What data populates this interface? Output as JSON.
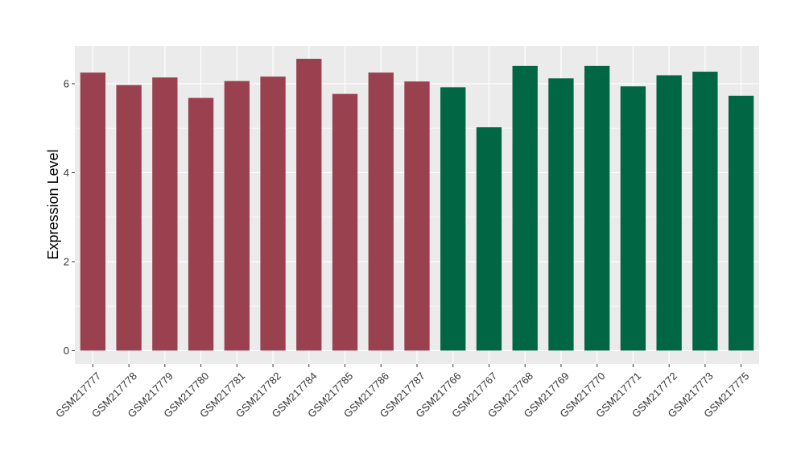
{
  "chart_data": {
    "type": "bar",
    "ylabel": "Expression Level",
    "xlabel": "",
    "ylim": [
      -0.3,
      6.85
    ],
    "y_ticks": [
      0,
      2,
      4,
      6
    ],
    "y_minor_ticks": [
      1,
      3,
      5
    ],
    "grid": true,
    "legend": "none",
    "categories": [
      "GSM217777",
      "GSM217778",
      "GSM217779",
      "GSM217780",
      "GSM217781",
      "GSM217782",
      "GSM217784",
      "GSM217785",
      "GSM217786",
      "GSM217787",
      "GSM217766",
      "GSM217767",
      "GSM217768",
      "GSM217769",
      "GSM217770",
      "GSM217771",
      "GSM217772",
      "GSM217773",
      "GSM217775"
    ],
    "values": [
      6.25,
      5.97,
      6.14,
      5.68,
      6.06,
      6.16,
      6.56,
      5.77,
      6.25,
      6.05,
      5.92,
      5.02,
      6.4,
      6.12,
      6.4,
      5.94,
      6.19,
      6.27,
      5.73
    ],
    "bar_colors": [
      "#99414F",
      "#99414F",
      "#99414F",
      "#99414F",
      "#99414F",
      "#99414F",
      "#99414F",
      "#99414F",
      "#99414F",
      "#99414F",
      "#006644",
      "#006644",
      "#006644",
      "#006644",
      "#006644",
      "#006644",
      "#006644",
      "#006644",
      "#006644"
    ],
    "colors": {
      "group_a": "#99414F",
      "group_b": "#006644",
      "panel_background": "#EBEBEB",
      "grid": "#FFFFFF"
    }
  }
}
